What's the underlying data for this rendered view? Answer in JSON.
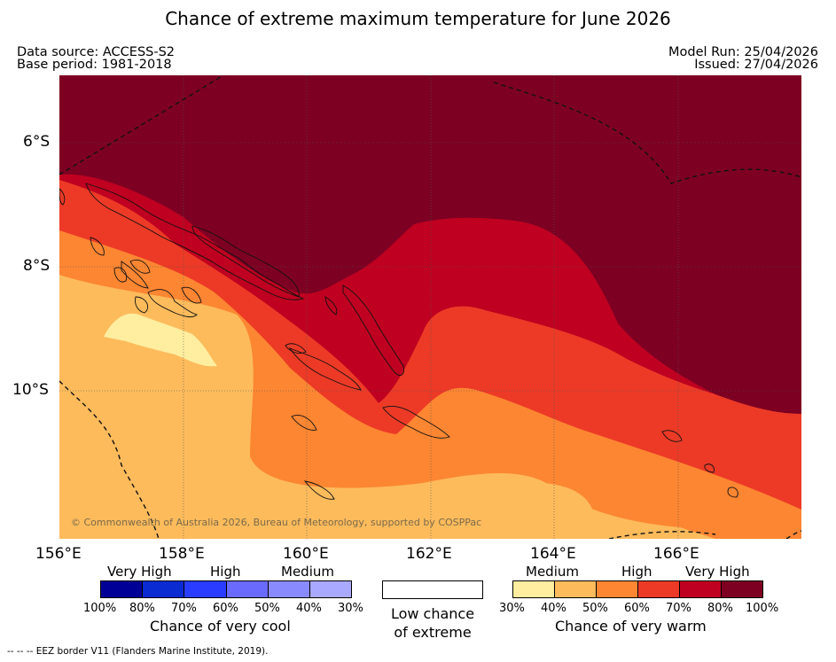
{
  "title": "Chance of extreme maximum temperature for June 2026",
  "meta": {
    "data_source": "Data source: ACCESS-S2",
    "base_period": "Base period: 1981-2018",
    "model_run": "Model Run: 25/04/2026",
    "issued": "Issued: 27/04/2026"
  },
  "map": {
    "lon_labels": [
      "156°E",
      "158°E",
      "160°E",
      "162°E",
      "164°E",
      "166°E"
    ],
    "lat_labels": [
      "6°S",
      "8°S",
      "10°S"
    ],
    "copyright": "© Commonwealth of Australia 2026, Bureau of Meteorology, supported by COSPPac",
    "colors": {
      "p30": "#ffeea0",
      "p40": "#fdbb5c",
      "p50": "#fd8632",
      "p60": "#ec3a26",
      "p70": "#bf0020",
      "p80": "#7d0022"
    }
  },
  "legend": {
    "cool": {
      "categories": [
        "Very High",
        "High",
        "Medium"
      ],
      "ticks": [
        "100%",
        "80%",
        "70%",
        "60%",
        "50%",
        "40%",
        "30%"
      ],
      "colors": [
        "#000096",
        "#0a2ad2",
        "#2a3cff",
        "#6a6aff",
        "#8a8aff",
        "#a9a9ff"
      ],
      "caption": "Chance of very cool"
    },
    "neutral": {
      "caption_line1": "Low chance",
      "caption_line2": "of extreme"
    },
    "warm": {
      "categories": [
        "Medium",
        "High",
        "Very High"
      ],
      "ticks": [
        "30%",
        "40%",
        "50%",
        "60%",
        "70%",
        "80%",
        "100%"
      ],
      "colors": [
        "#ffeea0",
        "#fdbb5c",
        "#fd8632",
        "#ec3a26",
        "#bf0020",
        "#7d0022"
      ],
      "caption": "Chance of very warm"
    }
  },
  "footnote": "--  --  -- EEZ border V11 (Flanders Marine Institute, 2019)."
}
